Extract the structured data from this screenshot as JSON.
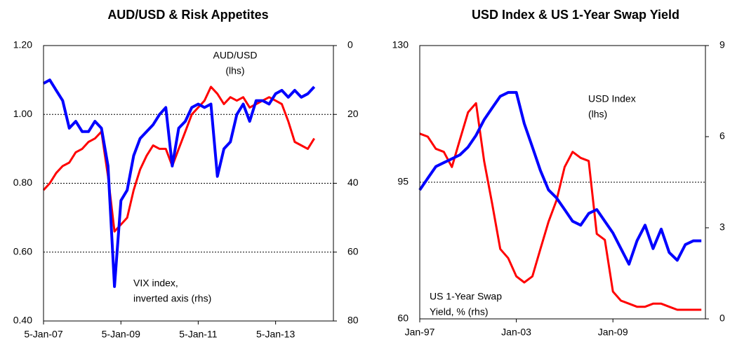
{
  "chart_data": [
    {
      "type": "line",
      "title": "AUD/USD & Risk Appetites",
      "x": [
        "2007-01-05",
        "2007-03-05",
        "2007-05-05",
        "2007-07-05",
        "2007-09-05",
        "2007-11-05",
        "2008-01-05",
        "2008-03-05",
        "2008-05-05",
        "2008-07-05",
        "2008-09-05",
        "2008-11-05",
        "2009-01-05",
        "2009-03-05",
        "2009-05-05",
        "2009-07-05",
        "2009-09-05",
        "2009-11-05",
        "2010-01-05",
        "2010-03-05",
        "2010-05-05",
        "2010-07-05",
        "2010-09-05",
        "2010-11-05",
        "2011-01-05",
        "2011-03-05",
        "2011-05-05",
        "2011-07-05",
        "2011-09-05",
        "2011-11-05",
        "2012-01-05",
        "2012-03-05",
        "2012-05-05",
        "2012-07-05",
        "2012-09-05",
        "2012-11-05",
        "2013-01-05",
        "2013-03-05",
        "2013-05-05",
        "2013-07-05",
        "2013-09-05",
        "2013-11-05",
        "2014-01-05"
      ],
      "series": [
        {
          "color": "#ff0000",
          "values": [
            0.78,
            0.8,
            0.83,
            0.85,
            0.86,
            0.89,
            0.9,
            0.92,
            0.93,
            0.95,
            0.82,
            0.66,
            0.68,
            0.7,
            0.78,
            0.84,
            0.88,
            0.91,
            0.9,
            0.9,
            0.85,
            0.9,
            0.95,
            1.0,
            1.02,
            1.04,
            1.08,
            1.06,
            1.03,
            1.05,
            1.04,
            1.05,
            1.02,
            1.03,
            1.04,
            1.05,
            1.04,
            1.03,
            0.98,
            0.92,
            0.91,
            0.9,
            0.93
          ]
        },
        {
          "color": "#0000ff",
          "axis": "y2",
          "values": [
            11,
            10,
            13,
            16,
            24,
            22,
            25,
            25,
            22,
            24,
            35,
            70,
            45,
            42,
            32,
            27,
            25,
            23,
            20,
            18,
            35,
            24,
            22,
            18,
            17,
            18,
            17,
            38,
            30,
            28,
            20,
            17,
            22,
            16,
            16,
            17,
            14,
            13,
            15,
            13,
            15,
            14,
            12
          ]
        }
      ],
      "annotations": [
        {
          "lines": [
            "AUD/USD",
            "(lhs)"
          ],
          "color": "#ff0000"
        },
        {
          "lines": [
            "VIX index,",
            "inverted axis (rhs)"
          ],
          "color": "#0000ff"
        }
      ],
      "xlim": [
        "2007-01-05",
        "2014-07-05"
      ],
      "xticks": [
        {
          "value": "2007-01-05",
          "label": "5-Jan-07"
        },
        {
          "value": "2009-01-05",
          "label": "5-Jan-09"
        },
        {
          "value": "2011-01-05",
          "label": "5-Jan-11"
        },
        {
          "value": "2013-01-05",
          "label": "5-Jan-13"
        }
      ],
      "ylim": [
        0.4,
        1.2
      ],
      "yticks": [
        {
          "value": 0.4,
          "label": "0.40"
        },
        {
          "value": 0.6,
          "label": "0.60"
        },
        {
          "value": 0.8,
          "label": "0.80"
        },
        {
          "value": 1.0,
          "label": "1.00"
        },
        {
          "value": 1.2,
          "label": "1.20"
        }
      ],
      "y2lim": [
        80,
        0
      ],
      "y2ticks": [
        0,
        20,
        40,
        60,
        80
      ],
      "grid": true
    },
    {
      "type": "line",
      "title": "USD Index & US 1-Year Swap Yield",
      "x": [
        "1997-01",
        "1997-07",
        "1998-01",
        "1998-07",
        "1999-01",
        "1999-07",
        "2000-01",
        "2000-07",
        "2001-01",
        "2001-07",
        "2002-01",
        "2002-07",
        "2003-01",
        "2003-07",
        "2004-01",
        "2004-07",
        "2005-01",
        "2005-07",
        "2006-01",
        "2006-07",
        "2007-01",
        "2007-07",
        "2008-01",
        "2008-07",
        "2009-01",
        "2009-07",
        "2010-01",
        "2010-07",
        "2011-01",
        "2011-07",
        "2012-01",
        "2012-07",
        "2013-01",
        "2013-07",
        "2014-01",
        "2014-07"
      ],
      "series": [
        {
          "color": "#ff0000",
          "axis": "y2",
          "values": [
            6.1,
            6.0,
            5.6,
            5.5,
            5.0,
            5.9,
            6.8,
            7.1,
            5.2,
            3.8,
            2.3,
            2.0,
            1.4,
            1.2,
            1.4,
            2.3,
            3.2,
            3.9,
            5.0,
            5.5,
            5.3,
            5.2,
            2.8,
            2.6,
            0.9,
            0.6,
            0.5,
            0.4,
            0.4,
            0.5,
            0.5,
            0.4,
            0.3,
            0.3,
            0.3,
            0.3
          ]
        },
        {
          "color": "#0000ff",
          "values": [
            93,
            96,
            99,
            100,
            101,
            102,
            104,
            107,
            111,
            114,
            117,
            118,
            118,
            110,
            104,
            98,
            93,
            91,
            88,
            85,
            84,
            87,
            88,
            85,
            82,
            78,
            74,
            80,
            84,
            78,
            83,
            77,
            75,
            79,
            80,
            80
          ]
        }
      ],
      "annotations": [
        {
          "lines": [
            "USD Index",
            "(lhs)"
          ],
          "color": "#0000ff"
        },
        {
          "lines": [
            "US 1-Year Swap",
            "Yield, % (rhs)"
          ],
          "color": "#ff0000"
        }
      ],
      "xlim": [
        "1997-01",
        "2014-10"
      ],
      "xticks": [
        {
          "value": "1997-01",
          "label": "Jan-97"
        },
        {
          "value": "2003-01",
          "label": "Jan-03"
        },
        {
          "value": "2009-01",
          "label": "Jan-09"
        }
      ],
      "ylim": [
        60,
        130
      ],
      "yticks": [
        60,
        95,
        130
      ],
      "y2lim": [
        0,
        9
      ],
      "y2ticks": [
        0,
        3,
        6,
        9
      ],
      "grid": true
    }
  ]
}
